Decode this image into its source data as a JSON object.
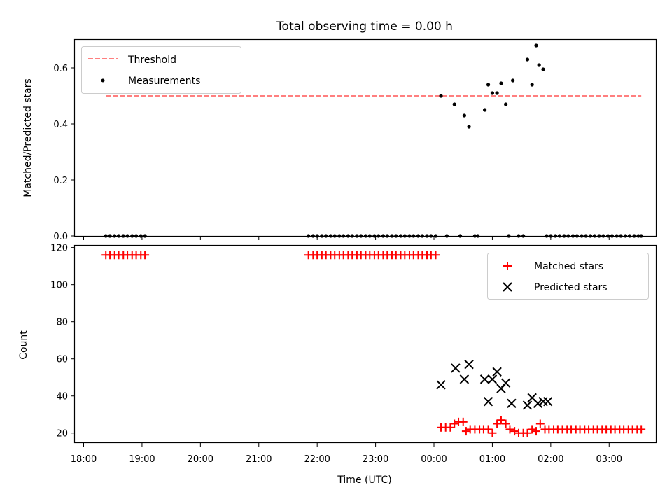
{
  "title": "Total observing time = 0.00 h",
  "colors": {
    "threshold": "#ff7f7f",
    "measurement": "#000000",
    "matched": "#ff0000",
    "predicted": "#000000"
  },
  "chart_data": [
    {
      "type": "scatter",
      "panel": "top",
      "ylabel": "Matched/Predicted stars",
      "ylim": [
        0,
        0.7
      ],
      "yticks": [
        0.0,
        0.2,
        0.4,
        0.6
      ],
      "ytick_labels": [
        "0.0",
        "0.2",
        "0.4",
        "0.6"
      ],
      "x_unit": "hours since 18:00 UTC",
      "legend": {
        "position": "top-left",
        "entries": [
          "Threshold",
          "Measurements"
        ]
      },
      "series": [
        {
          "name": "Threshold",
          "style": "dashed-line",
          "x": [
            0.38,
            9.55
          ],
          "y": [
            0.5,
            0.5
          ]
        },
        {
          "name": "Measurements",
          "style": "dot",
          "x": [
            0.38,
            0.45,
            0.53,
            0.6,
            0.68,
            0.75,
            0.83,
            0.9,
            0.98,
            1.05,
            3.85,
            3.93,
            4.0,
            4.08,
            4.15,
            4.23,
            4.3,
            4.38,
            4.45,
            4.53,
            4.6,
            4.68,
            4.75,
            4.83,
            4.9,
            4.98,
            5.05,
            5.13,
            5.2,
            5.28,
            5.35,
            5.43,
            5.5,
            5.58,
            5.65,
            5.73,
            5.8,
            5.88,
            5.95,
            6.03,
            6.12,
            6.22,
            6.35,
            6.45,
            6.52,
            6.6,
            6.7,
            6.75,
            6.87,
            6.93,
            7.0,
            7.08,
            7.15,
            7.23,
            7.28,
            7.35,
            7.45,
            7.53,
            7.6,
            7.68,
            7.75,
            7.8,
            7.87,
            7.93,
            8.0,
            8.08,
            8.15,
            8.23,
            8.3,
            8.38,
            8.45,
            8.53,
            8.6,
            8.68,
            8.75,
            8.83,
            8.9,
            8.98,
            9.05,
            9.13,
            9.2,
            9.28,
            9.35,
            9.43,
            9.5,
            9.55
          ],
          "y": [
            0,
            0,
            0,
            0,
            0,
            0,
            0,
            0,
            0,
            0,
            0,
            0,
            0,
            0,
            0,
            0,
            0,
            0,
            0,
            0,
            0,
            0,
            0,
            0,
            0,
            0,
            0,
            0,
            0,
            0,
            0,
            0,
            0,
            0,
            0,
            0,
            0,
            0,
            0,
            0,
            0.5,
            0,
            0.47,
            0,
            0.43,
            0.39,
            0,
            0,
            0.45,
            0.54,
            0.51,
            0.51,
            0.545,
            0.47,
            0,
            0.555,
            0,
            0,
            0.63,
            0.54,
            0.68,
            0.61,
            0.595,
            0,
            0,
            0,
            0,
            0,
            0,
            0,
            0,
            0,
            0,
            0,
            0,
            0,
            0,
            0,
            0,
            0,
            0,
            0,
            0,
            0,
            0,
            0
          ]
        }
      ]
    },
    {
      "type": "scatter",
      "panel": "bottom",
      "xlabel": "Time (UTC)",
      "ylabel": "Count",
      "ylim": [
        15,
        121
      ],
      "yticks": [
        20,
        40,
        60,
        80,
        100,
        120
      ],
      "ytick_labels": [
        "20",
        "40",
        "60",
        "80",
        "100",
        "120"
      ],
      "x_unit": "hours since 18:00 UTC",
      "xlim": [
        -0.15,
        9.8
      ],
      "xticks": [
        0,
        1,
        2,
        3,
        4,
        5,
        6,
        7,
        8,
        9
      ],
      "xtick_labels": [
        "18:00",
        "19:00",
        "20:00",
        "21:00",
        "22:00",
        "23:00",
        "00:00",
        "01:00",
        "02:00",
        "03:00"
      ],
      "legend": {
        "position": "top-right",
        "entries": [
          "Matched stars",
          "Predicted stars"
        ]
      },
      "series": [
        {
          "name": "Matched stars",
          "marker": "+",
          "x": [
            0.38,
            0.45,
            0.53,
            0.6,
            0.68,
            0.75,
            0.83,
            0.9,
            0.98,
            1.05,
            3.85,
            3.93,
            4.0,
            4.08,
            4.15,
            4.23,
            4.3,
            4.38,
            4.45,
            4.53,
            4.6,
            4.68,
            4.75,
            4.83,
            4.9,
            4.98,
            5.05,
            5.13,
            5.2,
            5.28,
            5.35,
            5.43,
            5.5,
            5.58,
            5.65,
            5.73,
            5.8,
            5.88,
            5.95,
            6.03,
            6.12,
            6.2,
            6.28,
            6.35,
            6.42,
            6.5,
            6.55,
            6.62,
            6.7,
            6.78,
            6.85,
            6.93,
            7.0,
            7.08,
            7.15,
            7.23,
            7.3,
            7.38,
            7.45,
            7.53,
            7.6,
            7.68,
            7.75,
            7.82,
            7.9,
            7.97,
            8.05,
            8.12,
            8.2,
            8.28,
            8.35,
            8.43,
            8.5,
            8.58,
            8.65,
            8.73,
            8.8,
            8.88,
            8.95,
            9.03,
            9.1,
            9.18,
            9.25,
            9.33,
            9.4,
            9.48,
            9.55
          ],
          "y": [
            116,
            116,
            116,
            116,
            116,
            116,
            116,
            116,
            116,
            116,
            116,
            116,
            116,
            116,
            116,
            116,
            116,
            116,
            116,
            116,
            116,
            116,
            116,
            116,
            116,
            116,
            116,
            116,
            116,
            116,
            116,
            116,
            116,
            116,
            116,
            116,
            116,
            116,
            116,
            116,
            23,
            23,
            23,
            25,
            26,
            26,
            21,
            22,
            22,
            22,
            22,
            22,
            20,
            25,
            27,
            25,
            22,
            21,
            20,
            20,
            20,
            22,
            21,
            25,
            22,
            22,
            22,
            22,
            22,
            22,
            22,
            22,
            22,
            22,
            22,
            22,
            22,
            22,
            22,
            22,
            22,
            22,
            22,
            22,
            22,
            22,
            22
          ]
        },
        {
          "name": "Predicted stars",
          "marker": "x",
          "x": [
            6.12,
            6.37,
            6.52,
            6.6,
            6.87,
            6.93,
            7.0,
            7.08,
            7.15,
            7.23,
            7.33,
            7.6,
            7.68,
            7.78,
            7.87,
            7.95
          ],
          "y": [
            46,
            55,
            49,
            57,
            49,
            37,
            49,
            53,
            44,
            47,
            36,
            35,
            39,
            36,
            37,
            37
          ]
        }
      ]
    }
  ]
}
